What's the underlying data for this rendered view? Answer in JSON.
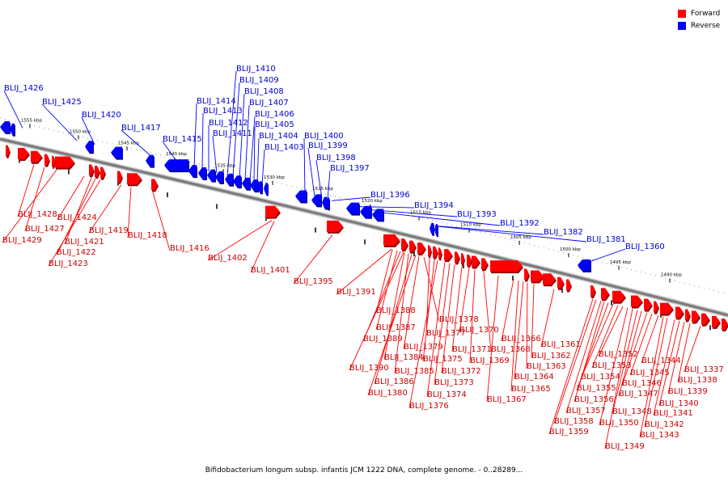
{
  "title": "Bifidobacterium longum subsp. infantis JCM 1222 DNA, complete genome. - 0..28289...",
  "legend": [
    {
      "label": "Forward",
      "color": "#ff0000"
    },
    {
      "label": "Reverse",
      "color": "#0000ff"
    }
  ],
  "colors": {
    "forward": "#ff0000",
    "reverse": "#0000ff",
    "forward_label": "#cc0000",
    "reverse_label": "#0000cc",
    "backbone": "#7a7a7a"
  },
  "scale_ticks": [
    "1555 kbp",
    "1550 kbp",
    "1545 kbp",
    "1540 kbp",
    "1535 kbp",
    "1530 kbp",
    "1525 kbp",
    "1520 kbp",
    "1515 kbp",
    "1510 kbp",
    "1505 kbp",
    "1500 kbp",
    "1495 kbp",
    "1490 kbp"
  ],
  "reverse_genes": [
    "BLIJ_1426",
    "BLIJ_1425",
    "BLIJ_1420",
    "BLIJ_1417",
    "BLIJ_1415",
    "BLIJ_1414",
    "BLIJ_1413",
    "BLIJ_1412",
    "BLIJ_1411",
    "BLIJ_1410",
    "BLIJ_1409",
    "BLIJ_1408",
    "BLIJ_1407",
    "BLIJ_1406",
    "BLIJ_1405",
    "BLIJ_1404",
    "BLIJ_1403",
    "BLIJ_1400",
    "BLIJ_1399",
    "BLIJ_1398",
    "BLIJ_1397",
    "BLIJ_1396",
    "BLIJ_1394",
    "BLIJ_1393",
    "BLIJ_1392",
    "BLIJ_1382",
    "BLIJ_1381",
    "BLIJ_1360"
  ],
  "forward_genes": [
    "BLIJ_1428",
    "BLIJ_1427",
    "BLIJ_1429",
    "BLIJ_1424",
    "BLIJ_1421",
    "BLIJ_1422",
    "BLIJ_1423",
    "BLIJ_1419",
    "BLIJ_1418",
    "BLIJ_1416",
    "BLIJ_1402",
    "BLIJ_1401",
    "BLIJ_1395",
    "BLIJ_1391",
    "BLIJ_1388",
    "BLIJ_1387",
    "BLIJ_1389",
    "BLIJ_1390",
    "BLIJ_1384",
    "BLIJ_1385",
    "BLIJ_1386",
    "BLIJ_1380",
    "BLIJ_1379",
    "BLIJ_1378",
    "BLIJ_1377",
    "BLIJ_1375",
    "BLIJ_1376",
    "BLIJ_1374",
    "BLIJ_1373",
    "BLIJ_1372",
    "BLIJ_1371",
    "BLIJ_1370",
    "BLIJ_1369",
    "BLIJ_1368",
    "BLIJ_1367",
    "BLIJ_1366",
    "BLIJ_1365",
    "BLIJ_1364",
    "BLIJ_1363",
    "BLIJ_1362",
    "BLIJ_1361",
    "BLIJ_1359",
    "BLIJ_1358",
    "BLIJ_1357",
    "BLIJ_1356",
    "BLIJ_1355",
    "BLIJ_1354",
    "BLIJ_1353",
    "BLIJ_1352",
    "BLIJ_1350",
    "BLIJ_1349",
    "BLIJ_1348",
    "BLIJ_1347",
    "BLIJ_1346",
    "BLIJ_1345",
    "BLIJ_1344",
    "BLIJ_1343",
    "BLIJ_1342",
    "BLIJ_1341",
    "BLIJ_1340",
    "BLIJ_1339",
    "BLIJ_1338",
    "BLIJ_1337"
  ]
}
